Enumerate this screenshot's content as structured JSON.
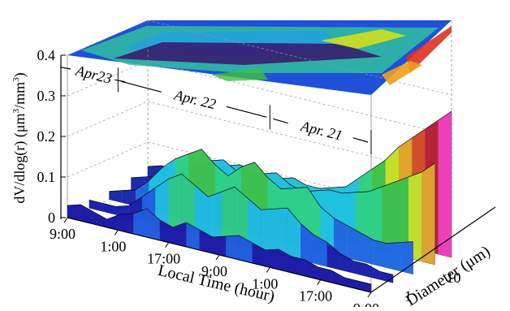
{
  "chart_data": {
    "type": "surface3d",
    "title": "",
    "zlabel_prefix": "dV/dlog(r) (",
    "zlabel_unit_um": "μm",
    "zlabel_sup1": "3",
    "zlabel_unit_mm": "/mm",
    "zlabel_sup2": "3",
    "zlabel_suffix": ")",
    "xlabel": "Local Time (hour)",
    "ylabel": "Diameter (μm)",
    "zlim": [
      0,
      0.4
    ],
    "z_ticks": [
      {
        "label": "0",
        "value": 0
      },
      {
        "label": "0.1",
        "value": 0.1
      },
      {
        "label": "0.2",
        "value": 0.2
      },
      {
        "label": "0.3",
        "value": 0.3
      },
      {
        "label": "0.4",
        "value": 0.4
      }
    ],
    "x_ticks": [
      {
        "label": "9:00",
        "t": 0
      },
      {
        "label": "1:00",
        "t": 16
      },
      {
        "label": "17:00",
        "t": 32
      },
      {
        "label": "9:00",
        "t": 48
      },
      {
        "label": "1:00",
        "t": 64
      },
      {
        "label": "17:00",
        "t": 80
      },
      {
        "label": "9:00",
        "t": 96
      }
    ],
    "y_ticks": [
      {
        "label": "1",
        "value": 1
      },
      {
        "label": "10",
        "value": 10
      }
    ],
    "date_labels": [
      {
        "label": "Apr23",
        "start": 0,
        "end": 16
      },
      {
        "label": "Apr. 22",
        "start": 16,
        "end": 64
      },
      {
        "label": "Apr. 21",
        "start": 64,
        "end": 96
      }
    ],
    "grid": true,
    "colormap": [
      "#3a0a66",
      "#1a1aa6",
      "#2060e0",
      "#20c0e0",
      "#30d080",
      "#40c040",
      "#d0e020",
      "#f0a020",
      "#e04020",
      "#c01030",
      "#ff30c0"
    ],
    "surface_series": [
      {
        "diameter_um": 0.3,
        "profile": [
          0.03,
          0.04,
          0.03,
          0.02,
          0.04,
          0.05,
          0.07,
          0.05,
          0.04,
          0.06,
          0.05,
          0.04,
          0.05,
          0.06,
          0.05,
          0.04,
          0.05,
          0.04,
          0.04,
          0.03,
          0.03,
          0.02,
          0.02,
          0.02
        ]
      },
      {
        "diameter_um": 1,
        "profile": [
          0.02,
          0.02,
          0.02,
          0.03,
          0.06,
          0.09,
          0.12,
          0.14,
          0.12,
          0.1,
          0.12,
          0.14,
          0.12,
          0.1,
          0.11,
          0.12,
          0.09,
          0.07,
          0.06,
          0.04,
          0.03,
          0.03,
          0.02,
          0.02
        ]
      },
      {
        "diameter_um": 3,
        "profile": [
          0.02,
          0.03,
          0.04,
          0.07,
          0.11,
          0.14,
          0.16,
          0.18,
          0.15,
          0.13,
          0.16,
          0.18,
          0.15,
          0.13,
          0.14,
          0.15,
          0.11,
          0.09,
          0.08,
          0.07,
          0.06,
          0.06,
          0.07,
          0.08
        ]
      },
      {
        "diameter_um": 10,
        "profile": [
          0.03,
          0.04,
          0.05,
          0.06,
          0.08,
          0.1,
          0.12,
          0.13,
          0.11,
          0.1,
          0.12,
          0.13,
          0.11,
          0.1,
          0.11,
          0.12,
          0.12,
          0.13,
          0.14,
          0.16,
          0.18,
          0.2,
          0.22,
          0.25
        ]
      },
      {
        "diameter_um": 25,
        "profile": [
          0.04,
          0.05,
          0.05,
          0.06,
          0.07,
          0.08,
          0.09,
          0.1,
          0.09,
          0.08,
          0.09,
          0.1,
          0.09,
          0.09,
          0.1,
          0.11,
          0.14,
          0.17,
          0.2,
          0.24,
          0.27,
          0.3,
          0.33,
          0.36
        ]
      }
    ]
  }
}
